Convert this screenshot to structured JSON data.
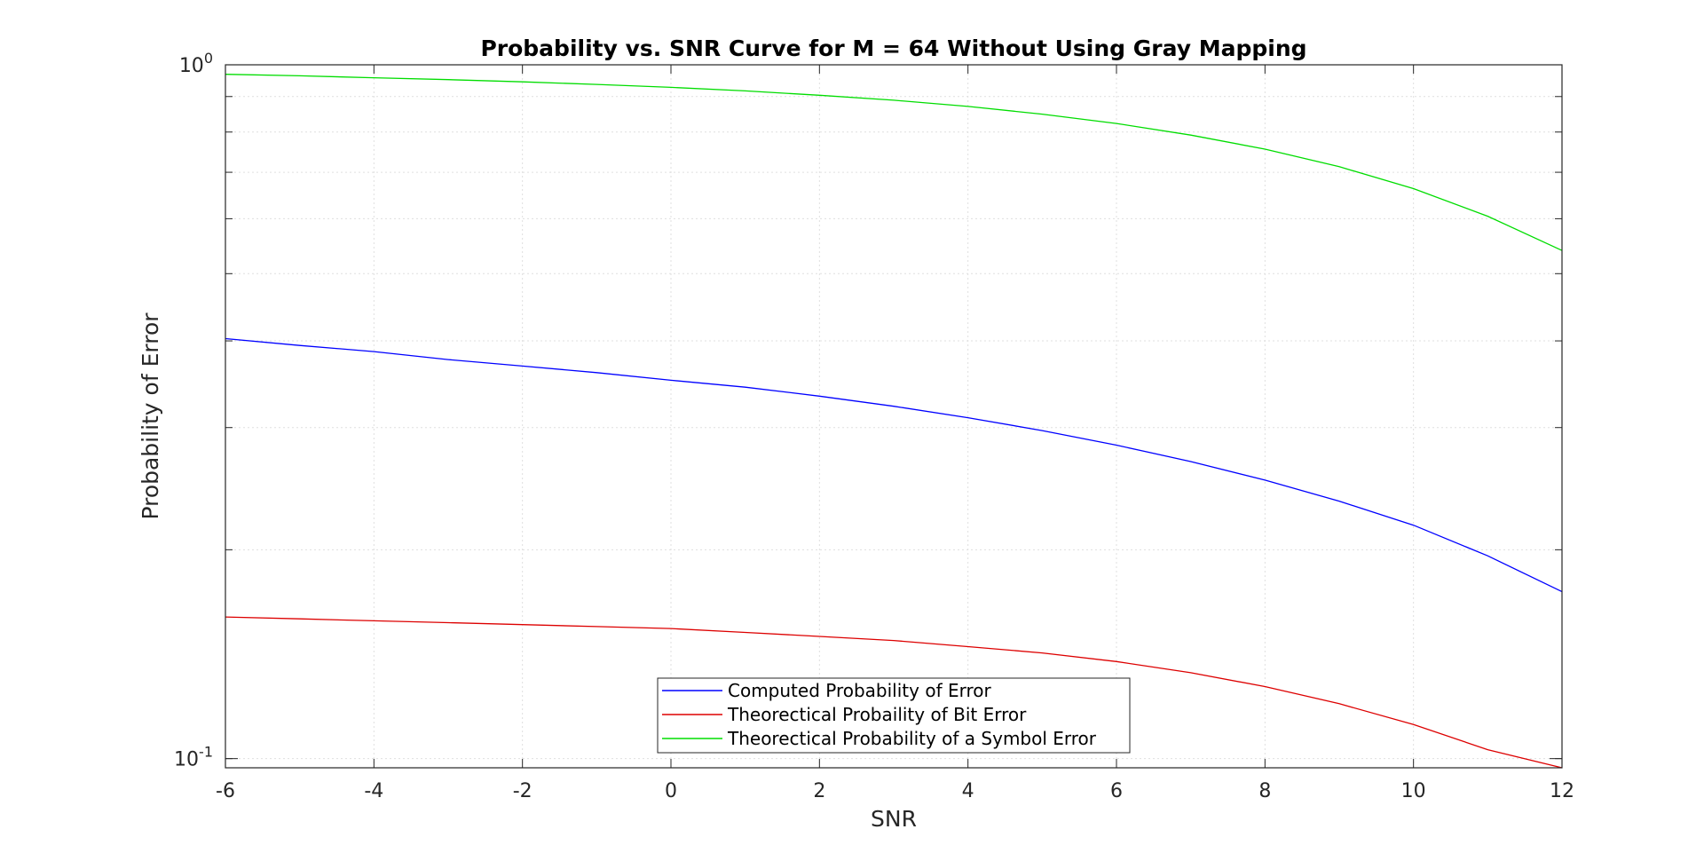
{
  "chart_data": {
    "type": "line",
    "title": "Probability vs. SNR Curve for M = 64 Without Using Gray Mapping",
    "xlabel": "SNR",
    "ylabel": "Probability of Error",
    "xlim": [
      -6,
      12
    ],
    "ylim": [
      0.097,
      1.0
    ],
    "yscale": "log",
    "xticks": [
      -6,
      -4,
      -2,
      0,
      2,
      4,
      6,
      8,
      10,
      12
    ],
    "xtick_labels": [
      "-6",
      "-4",
      "-2",
      "0",
      "2",
      "4",
      "6",
      "8",
      "10",
      "12"
    ],
    "yticks": [
      0.1,
      1.0
    ],
    "ytick_labels": [
      {
        "base": "10",
        "exp": "-1"
      },
      {
        "base": "10",
        "exp": "0"
      }
    ],
    "grid": true,
    "legend_position": "bottom-center",
    "x": [
      -6,
      -5,
      -4,
      -3,
      -2,
      -1,
      0,
      1,
      2,
      3,
      4,
      5,
      6,
      7,
      8,
      9,
      10,
      11,
      12
    ],
    "series": [
      {
        "name": "Computed Probability of Error",
        "color": "#0000ff",
        "values": [
          0.403,
          0.394,
          0.386,
          0.376,
          0.368,
          0.36,
          0.351,
          0.343,
          0.333,
          0.322,
          0.31,
          0.297,
          0.283,
          0.268,
          0.252,
          0.235,
          0.217,
          0.196,
          0.174
        ]
      },
      {
        "name": "Theorectical Probaility of Bit Error",
        "color": "#dd0000",
        "values": [
          0.16,
          0.159,
          0.158,
          0.157,
          0.156,
          0.155,
          0.154,
          0.152,
          0.15,
          0.148,
          0.145,
          0.142,
          0.138,
          0.133,
          0.127,
          0.12,
          0.112,
          0.103,
          0.097
        ]
      },
      {
        "name": "Theorectical Probability of a Symbol Error",
        "color": "#00dd00",
        "values": [
          0.969,
          0.964,
          0.958,
          0.952,
          0.945,
          0.937,
          0.928,
          0.917,
          0.904,
          0.889,
          0.871,
          0.849,
          0.823,
          0.792,
          0.756,
          0.713,
          0.663,
          0.605,
          0.54
        ]
      }
    ]
  }
}
